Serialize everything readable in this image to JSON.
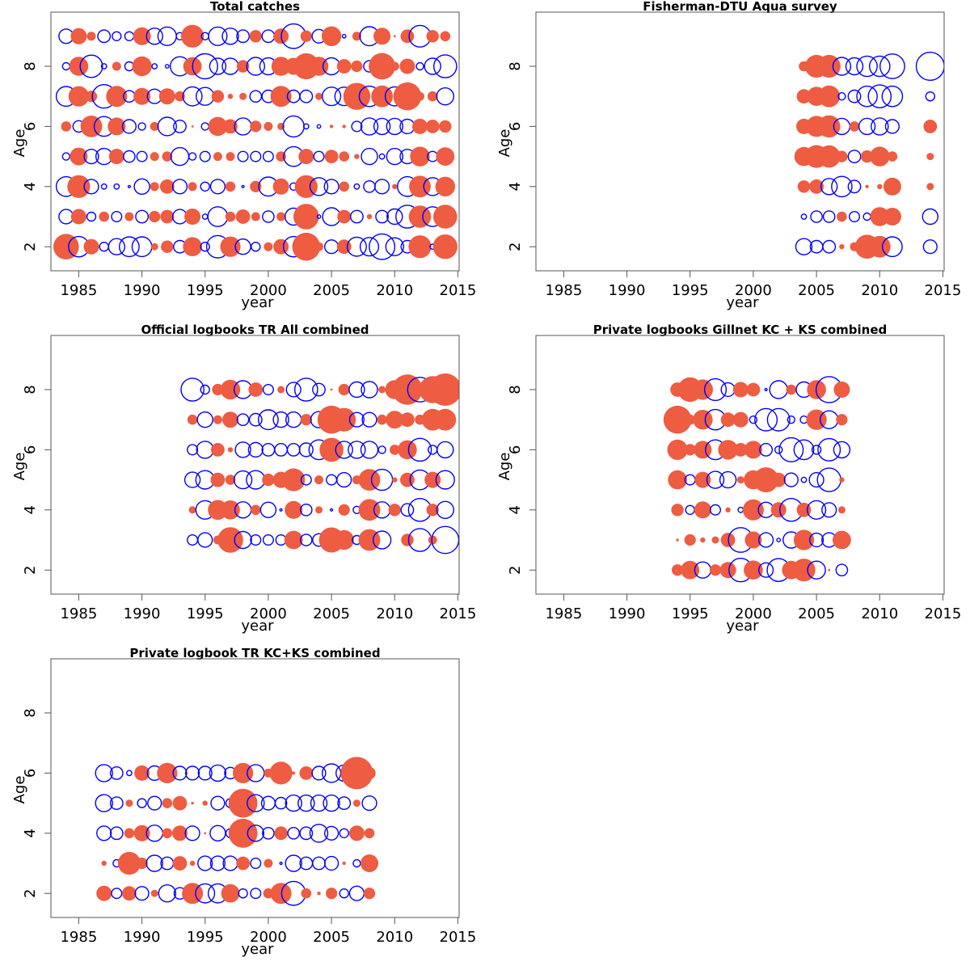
{
  "figure": {
    "colors": {
      "positive": "#EE5C42",
      "negative": "#0000FF",
      "axis": "#555555"
    }
  },
  "chart_data": [
    {
      "type": "scatter",
      "subtype": "bubble",
      "title": "Total catches",
      "xlabel": "year",
      "ylabel": "Age",
      "xlim": [
        1982.8,
        2015.1
      ],
      "ylim": [
        1.2,
        9.8
      ],
      "xticks": [
        1985,
        1990,
        1995,
        2000,
        2005,
        2010,
        2015
      ],
      "yticks": [
        2,
        4,
        6,
        8
      ],
      "encoding": "filled red = positive residual, open blue = negative residual; area ~ |value|",
      "years": [
        1984,
        1985,
        1986,
        1987,
        1988,
        1989,
        1990,
        1991,
        1992,
        1993,
        1994,
        1995,
        1996,
        1997,
        1998,
        1999,
        2000,
        2001,
        2002,
        2003,
        2004,
        2005,
        2006,
        2007,
        2008,
        2009,
        2010,
        2011,
        2012,
        2013,
        2014
      ],
      "series": [
        {
          "age": 9,
          "values": [
            -0.8,
            1.0,
            0.3,
            -0.6,
            -0.3,
            -0.3,
            1.2,
            -1.0,
            -1.3,
            -0.2,
            2.0,
            -0.2,
            -1.3,
            -1.0,
            -0.6,
            0.6,
            -0.6,
            0.9,
            -2.3,
            0.5,
            -0.7,
            1.5,
            -0.05,
            0.3,
            -1.4,
            1.1,
            0.02,
            0.7,
            -1.8,
            0.6,
            0.4
          ]
        },
        {
          "age": 8,
          "values": [
            -0.2,
            1.4,
            -1.9,
            -0.1,
            0.3,
            -0.3,
            1.5,
            -0.1,
            -0.05,
            -1.4,
            1.3,
            -2.4,
            -1.0,
            -1.0,
            0.6,
            -1.2,
            -1.1,
            1.4,
            1.1,
            2.6,
            1.4,
            -1.1,
            0.8,
            0.5,
            -0.5,
            2.7,
            0.3,
            0.9,
            -0.2,
            -1.0,
            -2.0
          ]
        },
        {
          "age": 7,
          "values": [
            -1.5,
            1.6,
            0.5,
            -2.1,
            1.7,
            -0.5,
            1.1,
            -0.8,
            1.0,
            0.4,
            -1.4,
            -1.2,
            0.6,
            0.1,
            0.2,
            -0.5,
            -0.6,
            1.7,
            -0.6,
            -0.6,
            0.2,
            -1.3,
            -1.3,
            2.8,
            -1.6,
            1.8,
            -1.4,
            3.0,
            0.3,
            0.4,
            -1.1
          ]
        },
        {
          "age": 6,
          "values": [
            0.4,
            -0.5,
            1.8,
            -1.5,
            1.2,
            -0.7,
            -0.2,
            0.3,
            -1.3,
            -0.6,
            0.02,
            -0.2,
            1.4,
            0.8,
            -1.1,
            0.5,
            0.3,
            0.2,
            -1.7,
            -0.1,
            -0.05,
            0.05,
            0.05,
            -0.4,
            -1.1,
            -1.0,
            -1.0,
            -0.8,
            0.9,
            0.7,
            0.6
          ]
        },
        {
          "age": 5,
          "values": [
            -0.2,
            1.2,
            -0.8,
            -1.0,
            0.9,
            -0.5,
            -0.4,
            0.3,
            0.4,
            -1.2,
            -0.2,
            -0.4,
            0.3,
            0.3,
            -0.4,
            -0.4,
            -0.4,
            0.4,
            -1.5,
            0.9,
            -0.4,
            0.7,
            0.4,
            0.1,
            -1.0,
            -0.1,
            -1.0,
            -0.8,
            1.5,
            -0.4,
            1.3
          ]
        },
        {
          "age": 4,
          "values": [
            -1.5,
            2.0,
            -0.8,
            -0.1,
            -0.1,
            -0.02,
            -0.9,
            0.3,
            0.8,
            -0.8,
            0.3,
            -0.3,
            -0.8,
            0.4,
            -0.02,
            0.5,
            -1.4,
            1.0,
            -0.2,
            2.0,
            -1.2,
            -0.8,
            0.4,
            -0.1,
            -0.5,
            -0.8,
            0.1,
            -1.5,
            1.8,
            -1.2,
            1.5
          ]
        },
        {
          "age": 3,
          "values": [
            -0.8,
            0.9,
            -0.3,
            0.4,
            -0.4,
            0.3,
            -0.6,
            0.5,
            0.7,
            -0.8,
            1.0,
            -0.1,
            -1.5,
            0.4,
            0.8,
            0.3,
            -0.5,
            0.3,
            -1.1,
            2.5,
            -0.05,
            -1.2,
            0.7,
            -0.6,
            0.1,
            -0.6,
            -0.9,
            -2.0,
            1.9,
            -1.5,
            2.2
          ]
        },
        {
          "age": 2,
          "values": [
            2.5,
            -1.6,
            0.9,
            -0.3,
            -1.0,
            -1.5,
            -1.5,
            0.2,
            0.6,
            -0.6,
            1.4,
            -0.3,
            -1.9,
            1.6,
            -0.9,
            -0.3,
            0.3,
            0.9,
            -1.6,
            3.0,
            0.3,
            -0.7,
            0.8,
            -1.4,
            -1.3,
            -2.5,
            -1.2,
            -0.6,
            2.0,
            -0.1,
            2.3
          ]
        }
      ]
    },
    {
      "type": "scatter",
      "subtype": "bubble",
      "title": "Fisherman-DTU Aqua survey",
      "xlabel": "year",
      "ylabel": "Age",
      "xlim": [
        1982.8,
        2015.1
      ],
      "ylim": [
        1.2,
        9.8
      ],
      "xticks": [
        1985,
        1990,
        1995,
        2000,
        2005,
        2010,
        2015
      ],
      "yticks": [
        2,
        4,
        6,
        8
      ],
      "years": [
        2004,
        2005,
        2006,
        2007,
        2008,
        2009,
        2010,
        2011,
        2014
      ],
      "series": [
        {
          "age": 8,
          "values": [
            0.4,
            2.0,
            2.0,
            -1.2,
            -1.1,
            -1.6,
            -1.6,
            -2.3,
            -3.0
          ]
        },
        {
          "age": 7,
          "values": [
            0.8,
            1.4,
            1.8,
            -0.2,
            -0.6,
            -1.6,
            -2.0,
            -1.6,
            -0.3
          ]
        },
        {
          "age": 6,
          "values": [
            0.9,
            1.7,
            1.9,
            -1.0,
            0.4,
            -1.0,
            -1.1,
            -0.7,
            0.7
          ]
        },
        {
          "age": 5,
          "values": [
            1.4,
            2.0,
            1.9,
            0.5,
            -0.6,
            0.6,
            1.5,
            0.4,
            0.2
          ]
        },
        {
          "age": 4,
          "values": [
            0.6,
            0.8,
            -1.0,
            -1.6,
            -0.6,
            0.05,
            0.1,
            1.2,
            0.2
          ]
        },
        {
          "age": 3,
          "values": [
            -0.1,
            -0.5,
            -0.5,
            0.4,
            -0.4,
            -0.2,
            1.4,
            1.2,
            -0.9
          ]
        },
        {
          "age": 2,
          "values": [
            -1.0,
            -0.6,
            -0.6,
            0.1,
            0.3,
            2.2,
            1.8,
            -1.5,
            -0.7
          ]
        }
      ]
    },
    {
      "type": "scatter",
      "subtype": "bubble",
      "title": "Official logbooks TR All combined",
      "xlabel": "year",
      "ylabel": "Age",
      "xlim": [
        1982.8,
        2015.1
      ],
      "ylim": [
        1.2,
        9.8
      ],
      "xticks": [
        1985,
        1990,
        1995,
        2000,
        2005,
        2010,
        2015
      ],
      "yticks": [
        2,
        4,
        6,
        8
      ],
      "years": [
        1994,
        1995,
        1996,
        1997,
        1998,
        1999,
        2000,
        2001,
        2002,
        2003,
        2004,
        2005,
        2006,
        2007,
        2008,
        2009,
        2010,
        2011,
        2012,
        2013,
        2014
      ],
      "series": [
        {
          "age": 8,
          "values": [
            -2.0,
            -0.3,
            0.5,
            1.5,
            -1.2,
            0.8,
            -0.4,
            0.2,
            -0.8,
            -2.0,
            -0.6,
            0.02,
            0.5,
            -0.9,
            -1.0,
            0.2,
            1.4,
            3.5,
            -2.3,
            2.8,
            4.0
          ]
        },
        {
          "age": 7,
          "values": [
            0.4,
            -0.9,
            0.3,
            1.0,
            -0.5,
            -0.6,
            -1.5,
            -0.9,
            -0.9,
            0.5,
            -1.0,
            3.0,
            2.1,
            -0.8,
            -0.8,
            0.4,
            1.2,
            0.8,
            0.4,
            1.8,
            1.8
          ]
        },
        {
          "age": 6,
          "values": [
            -0.4,
            -1.1,
            0.7,
            0.1,
            -0.9,
            -0.8,
            -0.6,
            -0.6,
            -0.6,
            -0.7,
            -1.5,
            2.2,
            -1.1,
            -1.1,
            -1.1,
            -0.2,
            0.4,
            1.4,
            -2.0,
            -0.3,
            -1.0
          ]
        },
        {
          "age": 5,
          "values": [
            -0.9,
            -1.3,
            0.8,
            0.4,
            -1.2,
            -1.3,
            0.6,
            1.0,
            2.0,
            -0.4,
            0.3,
            -0.4,
            -0.8,
            0.3,
            1.8,
            -1.7,
            0.1,
            0.8,
            -1.5,
            1.0,
            -1.3
          ]
        },
        {
          "age": 4,
          "values": [
            0.2,
            -1.3,
            1.5,
            1.4,
            -1.0,
            0.4,
            -0.9,
            -0.02,
            1.2,
            -0.5,
            0.2,
            -0.02,
            0.5,
            -0.2,
            1.8,
            -1.0,
            0.6,
            -0.6,
            -2.0,
            0.6,
            -1.1
          ]
        },
        {
          "age": 3,
          "values": [
            -0.4,
            -0.8,
            0.3,
            2.5,
            -1.1,
            -0.4,
            -0.4,
            -0.4,
            1.3,
            -0.5,
            -0.6,
            2.4,
            1.5,
            -0.3,
            1.8,
            -1.2,
            null,
            0.6,
            -2.0,
            0.3,
            -2.8
          ]
        }
      ]
    },
    {
      "type": "scatter",
      "subtype": "bubble",
      "title": "Private logbooks Gillnet KC + KS combined",
      "xlabel": "year",
      "ylabel": "Age",
      "xlim": [
        1982.8,
        2015.1
      ],
      "ylim": [
        1.2,
        9.8
      ],
      "xticks": [
        1985,
        1990,
        1995,
        2000,
        2005,
        2010,
        2015
      ],
      "yticks": [
        2,
        4,
        6,
        8
      ],
      "years": [
        1994,
        1995,
        1996,
        1997,
        1998,
        1999,
        2000,
        2001,
        2002,
        2003,
        2004,
        2005,
        2006,
        2007
      ],
      "series": [
        {
          "age": 8,
          "values": [
            0.8,
            2.3,
            1.6,
            -1.8,
            -0.7,
            0.9,
            0.7,
            -0.02,
            -1.2,
            0.4,
            -0.9,
            1.4,
            -2.6,
            1.0
          ]
        },
        {
          "age": 7,
          "values": [
            3.0,
            0.4,
            1.5,
            -1.6,
            0.8,
            0.9,
            -0.2,
            -1.9,
            -1.9,
            -0.2,
            -0.2,
            1.6,
            -1.2,
            0.5
          ]
        },
        {
          "age": 6,
          "values": [
            1.6,
            0.5,
            1.2,
            -1.5,
            1.5,
            0.7,
            1.2,
            -0.6,
            -0.2,
            -2.2,
            -1.5,
            -0.3,
            -1.9,
            -1.0
          ]
        },
        {
          "age": 5,
          "values": [
            1.4,
            -0.4,
            1.0,
            -1.1,
            -1.0,
            0.2,
            1.4,
            2.4,
            0.8,
            -0.7,
            -0.1,
            -0.8,
            -2.1,
            0.1
          ]
        },
        {
          "age": 4,
          "values": [
            0.6,
            -0.3,
            1.1,
            -0.4,
            0.1,
            -0.1,
            1.7,
            -0.9,
            0.9,
            -2.0,
            0.8,
            -1.3,
            -0.8,
            0.2
          ]
        },
        {
          "age": 3,
          "values": [
            0.03,
            0.5,
            0.1,
            0.2,
            0.8,
            -2.3,
            1.1,
            -0.8,
            -0.05,
            -1.0,
            1.6,
            -0.7,
            -0.8,
            1.3
          ]
        },
        {
          "age": 2,
          "values": [
            0.5,
            1.3,
            -1.0,
            0.5,
            1.0,
            -2.1,
            1.4,
            -0.8,
            -2.0,
            1.3,
            2.0,
            -1.2,
            0.02,
            -0.5
          ]
        }
      ]
    },
    {
      "type": "scatter",
      "subtype": "bubble",
      "title": "Private logbook TR KC+KS combined",
      "xlabel": "year",
      "ylabel": "Age",
      "xlim": [
        1982.8,
        2015.1
      ],
      "ylim": [
        1.2,
        9.8
      ],
      "xticks": [
        1985,
        1990,
        1995,
        2000,
        2005,
        2010,
        2015
      ],
      "yticks": [
        2,
        4,
        6,
        8
      ],
      "years": [
        1987,
        1988,
        1989,
        1990,
        1991,
        1992,
        1993,
        1994,
        1995,
        1996,
        1997,
        1998,
        1999,
        2000,
        2001,
        2002,
        2003,
        2004,
        2005,
        2006,
        2007,
        2008
      ],
      "series": [
        {
          "age": 6,
          "values": [
            -1.1,
            -0.6,
            -0.1,
            0.9,
            -0.8,
            1.6,
            -0.7,
            -0.7,
            -0.7,
            -1.0,
            -0.5,
            1.6,
            -1.1,
            0.3,
            2.0,
            0.04,
            0.7,
            -0.7,
            -1.3,
            -1.0,
            4.0,
            0.6
          ]
        },
        {
          "age": 5,
          "values": [
            -1.1,
            -0.6,
            0.2,
            -0.3,
            -0.7,
            0.4,
            0.8,
            0.03,
            0.1,
            -0.7,
            -0.3,
            3.2,
            -1.1,
            -0.7,
            -0.5,
            -1.0,
            -1.0,
            -1.0,
            -1.0,
            -0.6,
            0.2,
            -0.8
          ]
        },
        {
          "age": 4,
          "values": [
            -0.8,
            -0.6,
            0.4,
            1.0,
            -1.0,
            0.4,
            0.9,
            -0.8,
            0.02,
            -0.9,
            -0.3,
            3.2,
            -1.0,
            -0.5,
            0.7,
            -0.5,
            -0.6,
            -1.2,
            -0.7,
            -0.3,
            0.9,
            0.4
          ]
        },
        {
          "age": 3,
          "values": [
            0.1,
            -0.2,
            2.0,
            0.5,
            -1.0,
            -0.6,
            0.8,
            0.1,
            -0.8,
            -0.8,
            -0.8,
            0.7,
            -0.4,
            0.3,
            -0.02,
            -1.0,
            -0.6,
            -0.6,
            -0.7,
            0.05,
            -0.2,
            1.2
          ]
        },
        {
          "age": 2,
          "values": [
            0.9,
            -0.4,
            0.8,
            -0.7,
            0.2,
            -1.1,
            -0.5,
            1.7,
            -1.4,
            -1.4,
            1.3,
            -0.3,
            -0.4,
            0.4,
            1.7,
            -2.2,
            0.4,
            0.05,
            0.5,
            -0.3,
            -0.8,
            0.5
          ]
        }
      ]
    }
  ]
}
